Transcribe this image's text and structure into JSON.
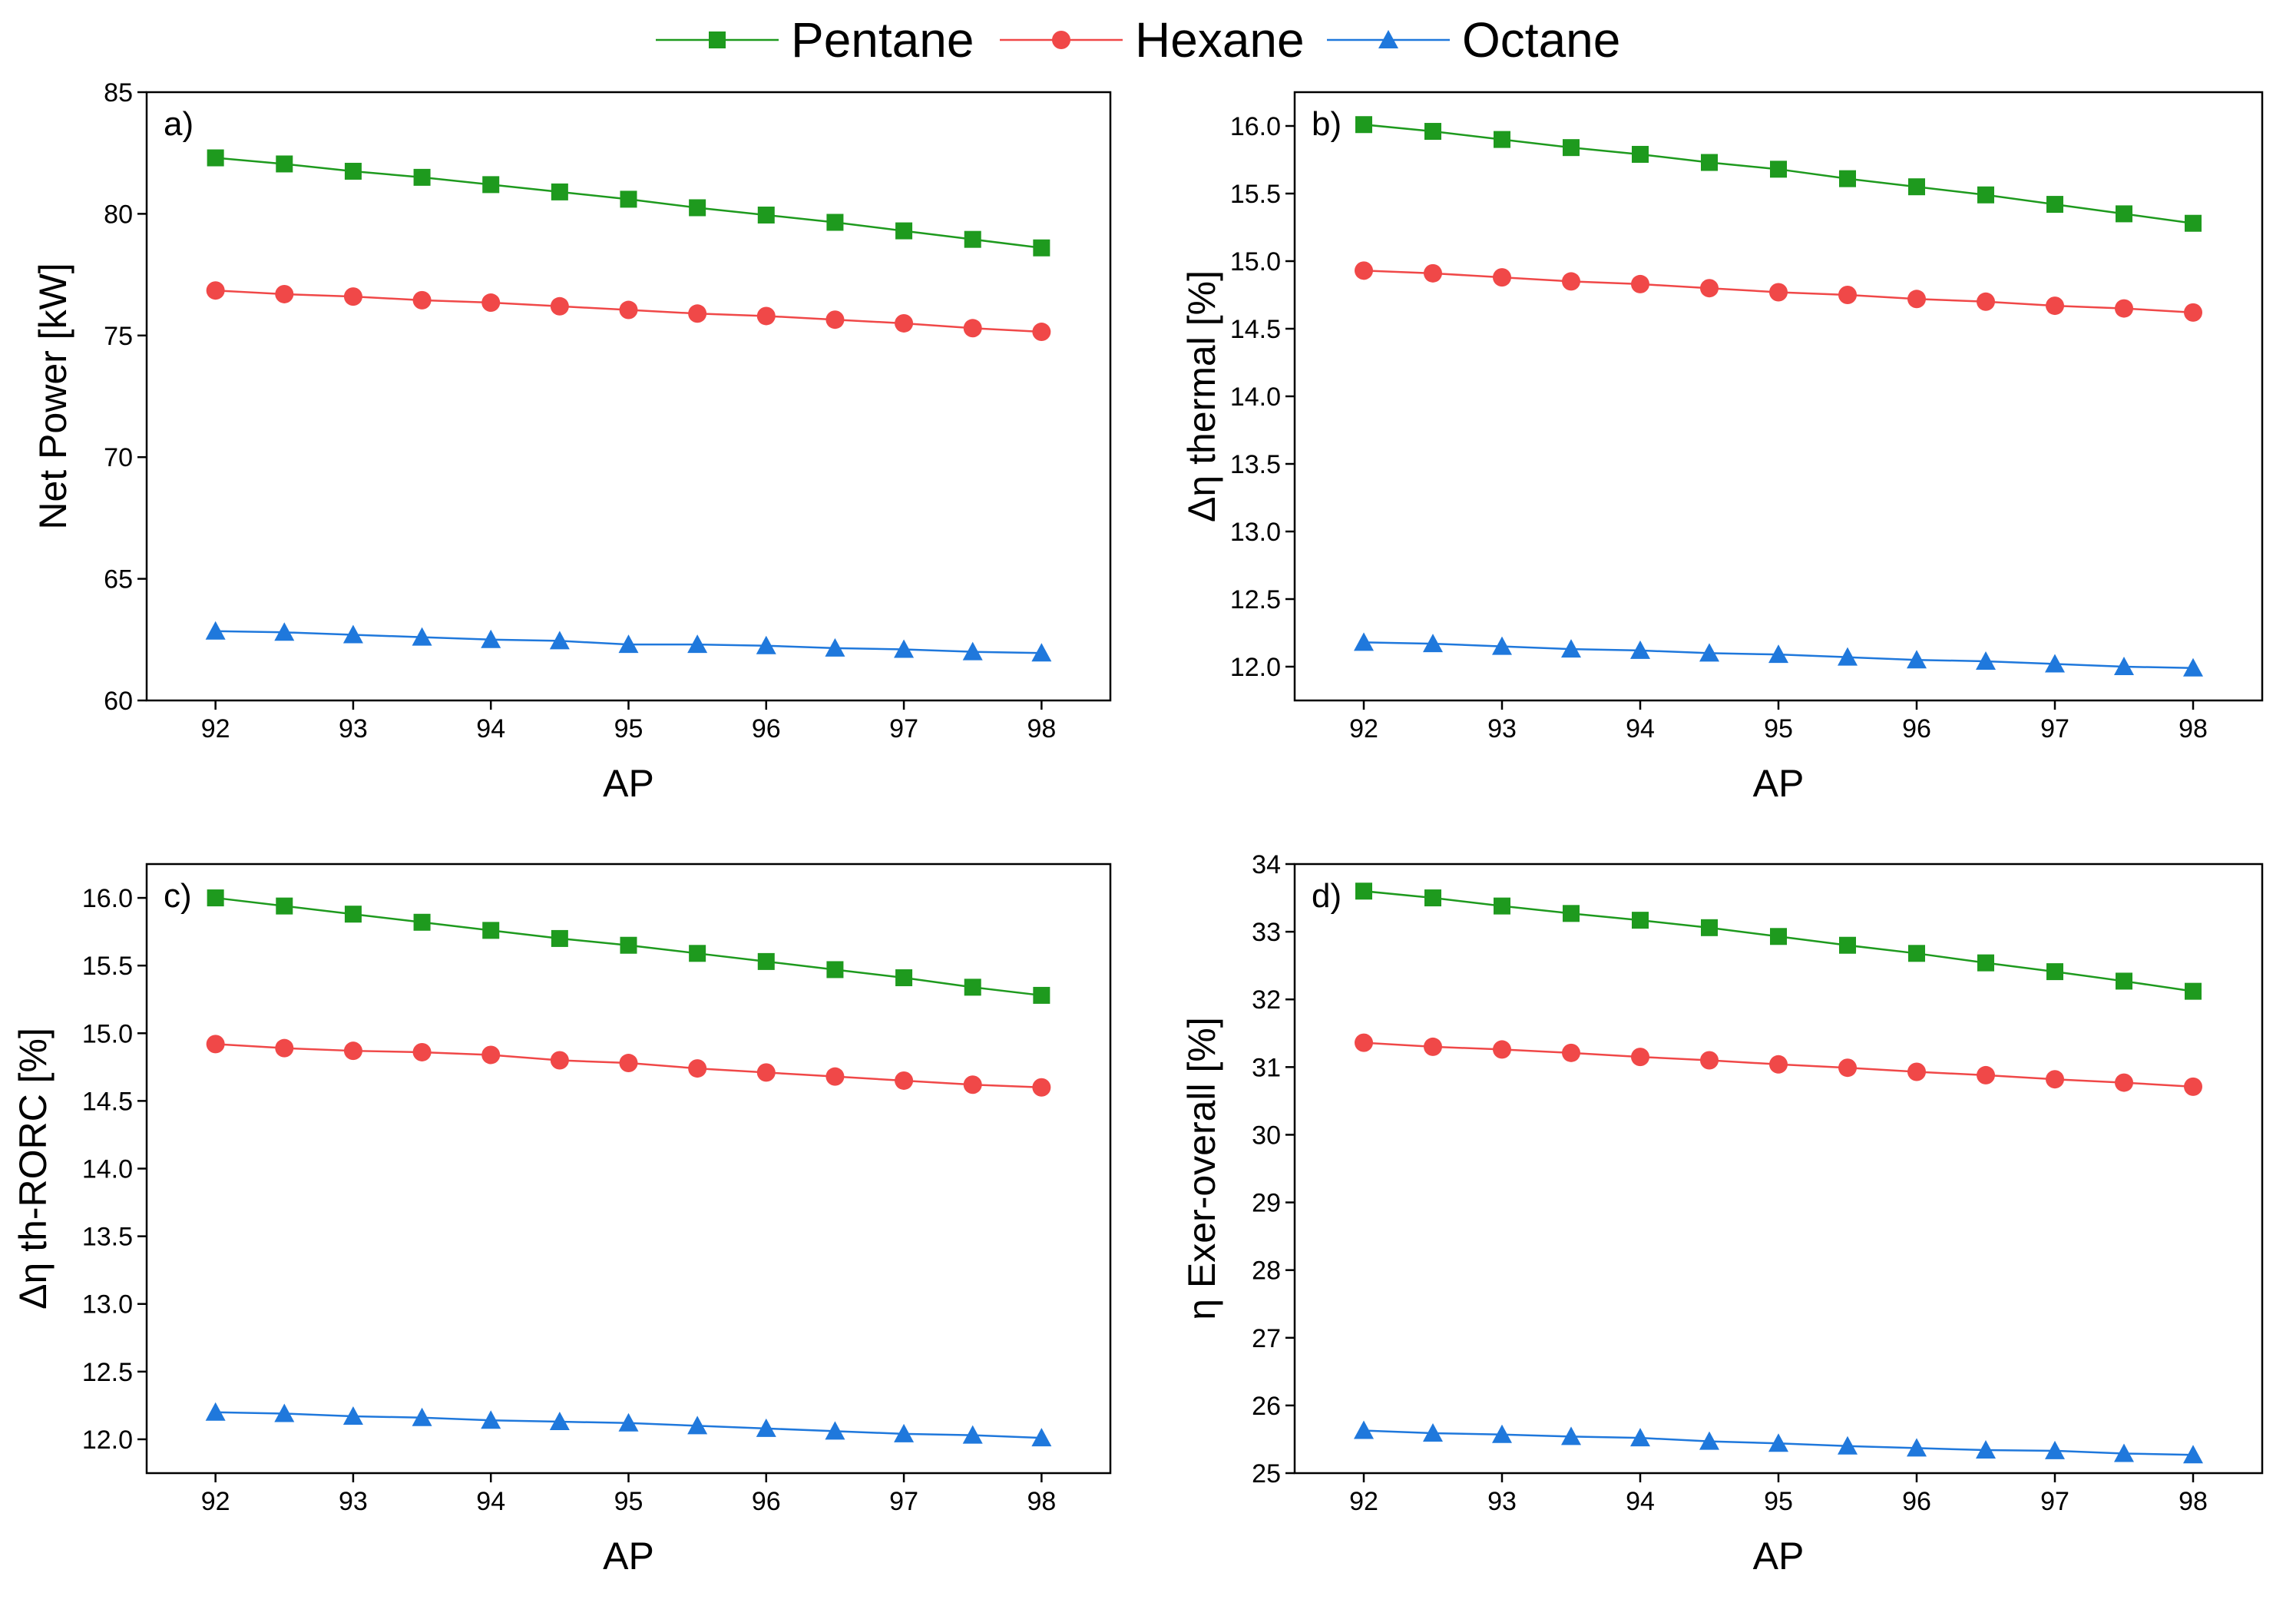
{
  "chart_data": [
    {
      "type": "line",
      "annotation": "a)",
      "xlabel": "AP",
      "ylabel": "Net Power [kW]",
      "x": [
        92,
        92.5,
        93,
        93.5,
        94,
        94.5,
        95,
        95.5,
        96,
        96.5,
        97,
        97.5,
        98
      ],
      "xlim": [
        91.5,
        98.5
      ],
      "xticks": [
        92,
        93,
        94,
        95,
        96,
        97,
        98
      ],
      "ylim": [
        60,
        85
      ],
      "yticks": [
        60,
        65,
        70,
        75,
        80,
        85
      ],
      "series": [
        {
          "name": "Pentane",
          "color": "#1e9a1e",
          "marker": "square",
          "values": [
            82.3,
            82.05,
            81.75,
            81.5,
            81.2,
            80.9,
            80.6,
            80.25,
            79.95,
            79.65,
            79.3,
            78.95,
            78.6
          ]
        },
        {
          "name": "Hexane",
          "color": "#f04848",
          "marker": "circle",
          "values": [
            76.85,
            76.7,
            76.6,
            76.45,
            76.35,
            76.2,
            76.05,
            75.9,
            75.8,
            75.65,
            75.5,
            75.3,
            75.15
          ]
        },
        {
          "name": "Octane",
          "color": "#1f78dc",
          "marker": "triangle",
          "values": [
            62.85,
            62.8,
            62.7,
            62.6,
            62.5,
            62.45,
            62.3,
            62.3,
            62.25,
            62.15,
            62.1,
            62.0,
            61.95
          ]
        }
      ]
    },
    {
      "type": "line",
      "annotation": "b)",
      "xlabel": "AP",
      "ylabel": "Δη thermal [%]",
      "x": [
        92,
        92.5,
        93,
        93.5,
        94,
        94.5,
        95,
        95.5,
        96,
        96.5,
        97,
        97.5,
        98
      ],
      "xlim": [
        91.5,
        98.5
      ],
      "xticks": [
        92,
        93,
        94,
        95,
        96,
        97,
        98
      ],
      "ylim": [
        11.75,
        16.25
      ],
      "yticks": [
        {
          "value": 12,
          "label": "12.0"
        },
        12.5,
        {
          "value": 13,
          "label": "13.0"
        },
        13.5,
        {
          "value": 14,
          "label": "14.0"
        },
        14.5,
        {
          "value": 15,
          "label": "15.0"
        },
        15.5,
        {
          "value": 16,
          "label": "16.0"
        }
      ],
      "series": [
        {
          "name": "Pentane",
          "color": "#1e9a1e",
          "marker": "square",
          "values": [
            16.01,
            15.96,
            15.9,
            15.84,
            15.79,
            15.73,
            15.68,
            15.61,
            15.55,
            15.49,
            15.42,
            15.35,
            15.28
          ]
        },
        {
          "name": "Hexane",
          "color": "#f04848",
          "marker": "circle",
          "values": [
            14.93,
            14.91,
            14.88,
            14.85,
            14.83,
            14.8,
            14.77,
            14.75,
            14.72,
            14.7,
            14.67,
            14.65,
            14.62
          ]
        },
        {
          "name": "Octane",
          "color": "#1f78dc",
          "marker": "triangle",
          "values": [
            12.18,
            12.17,
            12.15,
            12.13,
            12.12,
            12.1,
            12.09,
            12.07,
            12.05,
            12.04,
            12.02,
            12.0,
            11.99
          ]
        }
      ]
    },
    {
      "type": "line",
      "annotation": "c)",
      "xlabel": "AP",
      "ylabel": "Δη th-RORC [%]",
      "x": [
        92,
        92.5,
        93,
        93.5,
        94,
        94.5,
        95,
        95.5,
        96,
        96.5,
        97,
        97.5,
        98
      ],
      "xlim": [
        91.5,
        98.5
      ],
      "xticks": [
        92,
        93,
        94,
        95,
        96,
        97,
        98
      ],
      "ylim": [
        11.75,
        16.25
      ],
      "yticks": [
        {
          "value": 12,
          "label": "12.0"
        },
        12.5,
        {
          "value": 13,
          "label": "13.0"
        },
        13.5,
        {
          "value": 14,
          "label": "14.0"
        },
        14.5,
        {
          "value": 15,
          "label": "15.0"
        },
        15.5,
        {
          "value": 16,
          "label": "16.0"
        }
      ],
      "series": [
        {
          "name": "Pentane",
          "color": "#1e9a1e",
          "marker": "square",
          "values": [
            16.0,
            15.94,
            15.88,
            15.82,
            15.76,
            15.7,
            15.65,
            15.59,
            15.53,
            15.47,
            15.41,
            15.34,
            15.28
          ]
        },
        {
          "name": "Hexane",
          "color": "#f04848",
          "marker": "circle",
          "values": [
            14.92,
            14.89,
            14.87,
            14.86,
            14.84,
            14.8,
            14.78,
            14.74,
            14.71,
            14.68,
            14.65,
            14.62,
            14.6
          ]
        },
        {
          "name": "Octane",
          "color": "#1f78dc",
          "marker": "triangle",
          "values": [
            12.2,
            12.19,
            12.17,
            12.16,
            12.14,
            12.13,
            12.12,
            12.1,
            12.08,
            12.06,
            12.04,
            12.03,
            12.01
          ]
        }
      ]
    },
    {
      "type": "line",
      "annotation": "d)",
      "xlabel": "AP",
      "ylabel": "η Exer-overall [%]",
      "x": [
        92,
        92.5,
        93,
        93.5,
        94,
        94.5,
        95,
        95.5,
        96,
        96.5,
        97,
        97.5,
        98
      ],
      "xlim": [
        91.5,
        98.5
      ],
      "xticks": [
        92,
        93,
        94,
        95,
        96,
        97,
        98
      ],
      "ylim": [
        25,
        34
      ],
      "yticks": [
        25,
        26,
        27,
        28,
        29,
        30,
        31,
        32,
        33,
        34
      ],
      "series": [
        {
          "name": "Pentane",
          "color": "#1e9a1e",
          "marker": "square",
          "values": [
            33.6,
            33.5,
            33.38,
            33.27,
            33.17,
            33.06,
            32.93,
            32.8,
            32.68,
            32.54,
            32.41,
            32.27,
            32.12
          ]
        },
        {
          "name": "Hexane",
          "color": "#f04848",
          "marker": "circle",
          "values": [
            31.36,
            31.3,
            31.26,
            31.21,
            31.15,
            31.1,
            31.04,
            30.99,
            30.93,
            30.88,
            30.82,
            30.77,
            30.71
          ]
        },
        {
          "name": "Octane",
          "color": "#1f78dc",
          "marker": "triangle",
          "values": [
            25.63,
            25.59,
            25.57,
            25.54,
            25.52,
            25.47,
            25.44,
            25.4,
            25.37,
            25.34,
            25.33,
            25.29,
            25.27
          ]
        }
      ]
    }
  ]
}
